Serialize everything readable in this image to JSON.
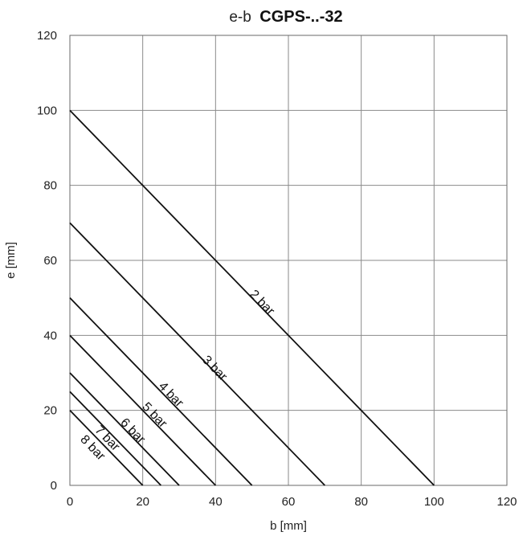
{
  "chart_data": {
    "type": "line",
    "title_prefix": "e-b",
    "title_main": "CGPS-..-32",
    "xlabel": "b [mm]",
    "ylabel": "e [mm]",
    "xlim": [
      0,
      120
    ],
    "ylim": [
      0,
      120
    ],
    "xticks": [
      "0",
      "20",
      "40",
      "60",
      "80",
      "100",
      "120"
    ],
    "yticks": [
      "0",
      "20",
      "40",
      "60",
      "80",
      "100",
      "120"
    ],
    "grid": true,
    "series": [
      {
        "name": "2 bar",
        "x": [
          0,
          100
        ],
        "y": [
          100,
          0
        ]
      },
      {
        "name": "3 bar",
        "x": [
          0,
          70
        ],
        "y": [
          70,
          0
        ]
      },
      {
        "name": "4 bar",
        "x": [
          0,
          50
        ],
        "y": [
          50,
          0
        ]
      },
      {
        "name": "5 bar",
        "x": [
          0,
          40
        ],
        "y": [
          40,
          0
        ]
      },
      {
        "name": "6 bar",
        "x": [
          0,
          30
        ],
        "y": [
          30,
          0
        ]
      },
      {
        "name": "7 bar",
        "x": [
          0,
          25
        ],
        "y": [
          25,
          0
        ]
      },
      {
        "name": "8 bar",
        "x": [
          0,
          20
        ],
        "y": [
          20,
          0
        ]
      }
    ],
    "label_anchor": [
      {
        "name": "2 bar",
        "x": 52,
        "y": 48
      },
      {
        "name": "3 bar",
        "x": 39,
        "y": 30.5
      },
      {
        "name": "4 bar",
        "x": 27,
        "y": 23.5
      },
      {
        "name": "5 bar",
        "x": 22.5,
        "y": 18
      },
      {
        "name": "6 bar",
        "x": 16.5,
        "y": 13.8
      },
      {
        "name": "7 bar",
        "x": 9.5,
        "y": 11.8
      },
      {
        "name": "8 bar",
        "x": 5.5,
        "y": 9.3
      }
    ]
  }
}
